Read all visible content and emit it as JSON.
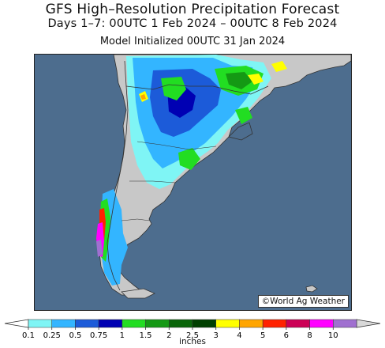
{
  "header": {
    "title": "GFS High–Resolution Precipitation Forecast",
    "subtitle": "Days 1–7: 00UTC 1 Feb 2024 – 00UTC 8 Feb 2024",
    "init": "Model Initialized 00UTC 31 Jan 2024"
  },
  "map": {
    "credit": "©World Ag Weather",
    "colors": {
      "ocean": "#4d6d8e",
      "land": "#c8c8c8",
      "border": "#333333"
    }
  },
  "legend": {
    "units": "inches",
    "ticks": [
      "0.1",
      "0.25",
      "0.5",
      "0.75",
      "1",
      "1.5",
      "2",
      "2.5",
      "3",
      "4",
      "5",
      "6",
      "8",
      "10"
    ],
    "colors": [
      "#7ff5f5",
      "#33b5ff",
      "#1c5bd9",
      "#0000b3",
      "#22dd22",
      "#149914",
      "#0a660a",
      "#004000",
      "#ffff00",
      "#ffa500",
      "#ff2200",
      "#cc0055",
      "#ff00ff",
      "#a070d0"
    ]
  }
}
